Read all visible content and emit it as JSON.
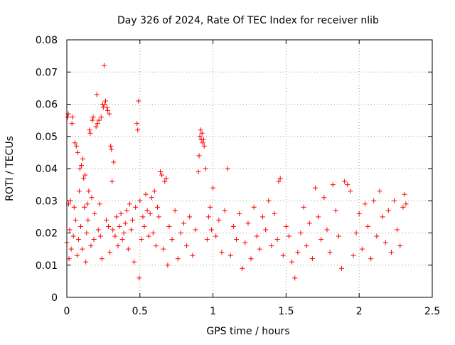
{
  "chart_data": {
    "type": "scatter",
    "title": "Day 326 of 2024, Rate Of TEC Index for receiver nlib",
    "xlabel": "GPS time / hours",
    "ylabel": "ROTI / TECUs",
    "xlim": [
      0,
      2.5
    ],
    "ylim": [
      0,
      0.08
    ],
    "x_ticks": [
      "0",
      "0.5",
      "1",
      "1.5",
      "2",
      "2.5"
    ],
    "y_ticks": [
      "0",
      "0.01",
      "0.02",
      "0.03",
      "0.04",
      "0.05",
      "0.06",
      "0.07",
      "0.08"
    ],
    "grid": true,
    "marker": "+",
    "marker_color": "#ff0000",
    "series": [
      {
        "name": "ROTI",
        "points": [
          [
            0.0,
            0.017
          ],
          [
            0.005,
            0.056
          ],
          [
            0.01,
            0.057
          ],
          [
            0.012,
            0.029
          ],
          [
            0.015,
            0.012
          ],
          [
            0.02,
            0.021
          ],
          [
            0.025,
            0.03
          ],
          [
            0.03,
            0.015
          ],
          [
            0.035,
            0.054
          ],
          [
            0.04,
            0.056
          ],
          [
            0.045,
            0.019
          ],
          [
            0.05,
            0.028
          ],
          [
            0.055,
            0.048
          ],
          [
            0.06,
            0.024
          ],
          [
            0.065,
            0.047
          ],
          [
            0.07,
            0.013
          ],
          [
            0.075,
            0.045
          ],
          [
            0.08,
            0.018
          ],
          [
            0.085,
            0.033
          ],
          [
            0.09,
            0.04
          ],
          [
            0.095,
            0.022
          ],
          [
            0.1,
            0.041
          ],
          [
            0.105,
            0.015
          ],
          [
            0.11,
            0.043
          ],
          [
            0.115,
            0.037
          ],
          [
            0.12,
            0.028
          ],
          [
            0.125,
            0.038
          ],
          [
            0.13,
            0.011
          ],
          [
            0.135,
            0.02
          ],
          [
            0.14,
            0.029
          ],
          [
            0.145,
            0.024
          ],
          [
            0.15,
            0.033
          ],
          [
            0.155,
            0.052
          ],
          [
            0.16,
            0.051
          ],
          [
            0.165,
            0.016
          ],
          [
            0.17,
            0.031
          ],
          [
            0.175,
            0.055
          ],
          [
            0.18,
            0.056
          ],
          [
            0.185,
            0.018
          ],
          [
            0.19,
            0.026
          ],
          [
            0.2,
            0.053
          ],
          [
            0.205,
            0.063
          ],
          [
            0.21,
            0.054
          ],
          [
            0.215,
            0.021
          ],
          [
            0.22,
            0.055
          ],
          [
            0.225,
            0.029
          ],
          [
            0.23,
            0.019
          ],
          [
            0.235,
            0.056
          ],
          [
            0.24,
            0.012
          ],
          [
            0.245,
            0.06
          ],
          [
            0.25,
            0.059
          ],
          [
            0.255,
            0.072
          ],
          [
            0.26,
            0.06
          ],
          [
            0.265,
            0.061
          ],
          [
            0.27,
            0.024
          ],
          [
            0.275,
            0.059
          ],
          [
            0.28,
            0.058
          ],
          [
            0.285,
            0.022
          ],
          [
            0.29,
            0.057
          ],
          [
            0.295,
            0.014
          ],
          [
            0.3,
            0.047
          ],
          [
            0.305,
            0.046
          ],
          [
            0.31,
            0.036
          ],
          [
            0.315,
            0.021
          ],
          [
            0.32,
            0.042
          ],
          [
            0.33,
            0.019
          ],
          [
            0.34,
            0.025
          ],
          [
            0.35,
            0.016
          ],
          [
            0.36,
            0.022
          ],
          [
            0.37,
            0.026
          ],
          [
            0.38,
            0.018
          ],
          [
            0.39,
            0.02
          ],
          [
            0.4,
            0.023
          ],
          [
            0.41,
            0.027
          ],
          [
            0.42,
            0.015
          ],
          [
            0.43,
            0.029
          ],
          [
            0.44,
            0.021
          ],
          [
            0.45,
            0.024
          ],
          [
            0.46,
            0.011
          ],
          [
            0.47,
            0.028
          ],
          [
            0.48,
            0.054
          ],
          [
            0.485,
            0.052
          ],
          [
            0.49,
            0.061
          ],
          [
            0.495,
            0.006
          ],
          [
            0.5,
            0.03
          ],
          [
            0.51,
            0.018
          ],
          [
            0.52,
            0.025
          ],
          [
            0.53,
            0.022
          ],
          [
            0.54,
            0.032
          ],
          [
            0.55,
            0.027
          ],
          [
            0.56,
            0.019
          ],
          [
            0.57,
            0.026
          ],
          [
            0.58,
            0.031
          ],
          [
            0.59,
            0.02
          ],
          [
            0.6,
            0.033
          ],
          [
            0.61,
            0.016
          ],
          [
            0.62,
            0.028
          ],
          [
            0.63,
            0.025
          ],
          [
            0.64,
            0.039
          ],
          [
            0.65,
            0.038
          ],
          [
            0.66,
            0.015
          ],
          [
            0.67,
            0.036
          ],
          [
            0.68,
            0.037
          ],
          [
            0.69,
            0.01
          ],
          [
            0.7,
            0.022
          ],
          [
            0.72,
            0.018
          ],
          [
            0.74,
            0.027
          ],
          [
            0.76,
            0.012
          ],
          [
            0.78,
            0.02
          ],
          [
            0.8,
            0.023
          ],
          [
            0.82,
            0.016
          ],
          [
            0.84,
            0.025
          ],
          [
            0.86,
            0.013
          ],
          [
            0.88,
            0.021
          ],
          [
            0.9,
            0.039
          ],
          [
            0.905,
            0.044
          ],
          [
            0.91,
            0.05
          ],
          [
            0.915,
            0.052
          ],
          [
            0.92,
            0.049
          ],
          [
            0.925,
            0.051
          ],
          [
            0.93,
            0.048
          ],
          [
            0.935,
            0.049
          ],
          [
            0.94,
            0.047
          ],
          [
            0.95,
            0.04
          ],
          [
            0.96,
            0.018
          ],
          [
            0.97,
            0.025
          ],
          [
            0.98,
            0.028
          ],
          [
            0.99,
            0.021
          ],
          [
            1.0,
            0.034
          ],
          [
            1.02,
            0.019
          ],
          [
            1.04,
            0.024
          ],
          [
            1.06,
            0.014
          ],
          [
            1.08,
            0.027
          ],
          [
            1.1,
            0.04
          ],
          [
            1.12,
            0.013
          ],
          [
            1.14,
            0.022
          ],
          [
            1.16,
            0.018
          ],
          [
            1.18,
            0.026
          ],
          [
            1.2,
            0.009
          ],
          [
            1.22,
            0.017
          ],
          [
            1.24,
            0.023
          ],
          [
            1.26,
            0.012
          ],
          [
            1.28,
            0.028
          ],
          [
            1.3,
            0.019
          ],
          [
            1.32,
            0.015
          ],
          [
            1.34,
            0.025
          ],
          [
            1.36,
            0.021
          ],
          [
            1.38,
            0.03
          ],
          [
            1.4,
            0.016
          ],
          [
            1.42,
            0.026
          ],
          [
            1.44,
            0.018
          ],
          [
            1.45,
            0.036
          ],
          [
            1.46,
            0.037
          ],
          [
            1.48,
            0.013
          ],
          [
            1.5,
            0.022
          ],
          [
            1.52,
            0.019
          ],
          [
            1.54,
            0.011
          ],
          [
            1.56,
            0.006
          ],
          [
            1.58,
            0.014
          ],
          [
            1.6,
            0.02
          ],
          [
            1.62,
            0.028
          ],
          [
            1.64,
            0.016
          ],
          [
            1.66,
            0.023
          ],
          [
            1.68,
            0.012
          ],
          [
            1.7,
            0.034
          ],
          [
            1.72,
            0.025
          ],
          [
            1.74,
            0.018
          ],
          [
            1.76,
            0.031
          ],
          [
            1.78,
            0.021
          ],
          [
            1.8,
            0.014
          ],
          [
            1.82,
            0.035
          ],
          [
            1.84,
            0.027
          ],
          [
            1.86,
            0.019
          ],
          [
            1.88,
            0.009
          ],
          [
            1.9,
            0.036
          ],
          [
            1.92,
            0.035
          ],
          [
            1.94,
            0.033
          ],
          [
            1.96,
            0.013
          ],
          [
            1.98,
            0.02
          ],
          [
            2.0,
            0.026
          ],
          [
            2.02,
            0.015
          ],
          [
            2.04,
            0.029
          ],
          [
            2.06,
            0.022
          ],
          [
            2.08,
            0.012
          ],
          [
            2.1,
            0.03
          ],
          [
            2.12,
            0.019
          ],
          [
            2.14,
            0.033
          ],
          [
            2.16,
            0.025
          ],
          [
            2.18,
            0.017
          ],
          [
            2.2,
            0.027
          ],
          [
            2.22,
            0.014
          ],
          [
            2.24,
            0.03
          ],
          [
            2.26,
            0.021
          ],
          [
            2.28,
            0.016
          ],
          [
            2.3,
            0.028
          ],
          [
            2.31,
            0.032
          ],
          [
            2.32,
            0.029
          ]
        ]
      }
    ]
  }
}
